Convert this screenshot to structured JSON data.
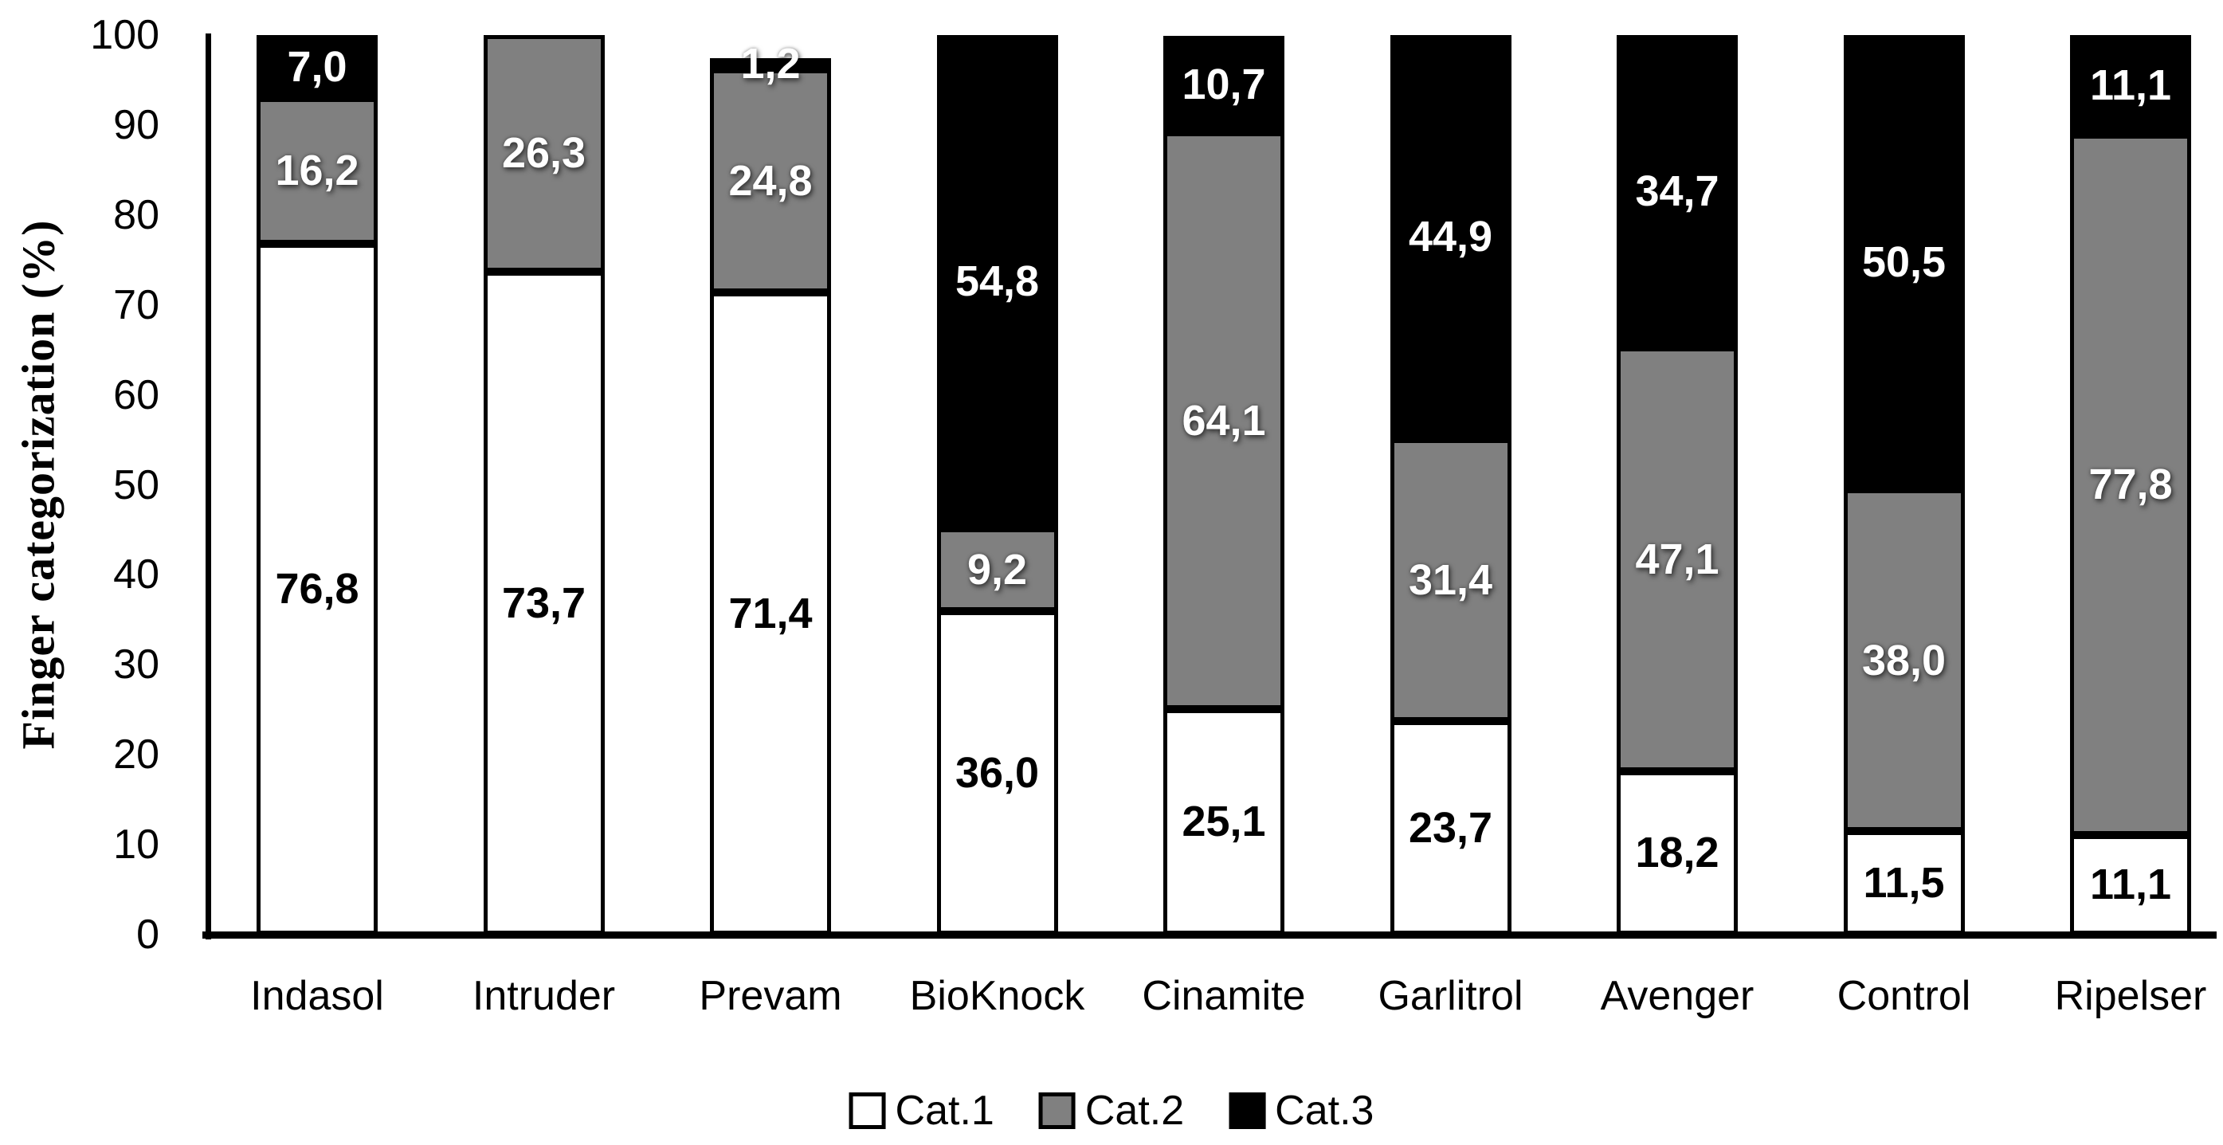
{
  "chart_data": {
    "type": "bar",
    "subtype": "stacked-percentage",
    "title": "",
    "ylabel": "Finger categorization (%)",
    "xlabel": "",
    "ylim": [
      0,
      100
    ],
    "yticks": [
      0,
      10,
      20,
      30,
      40,
      50,
      60,
      70,
      80,
      90,
      100
    ],
    "grid": false,
    "legend_position": "bottom-center",
    "decimal_separator": ",",
    "categories": [
      "Indasol",
      "Intruder",
      "Prevam",
      "BioKnock",
      "Cinamite",
      "Garlitrol",
      "Avenger",
      "Control",
      "Ripelser"
    ],
    "series": [
      {
        "name": "Cat.1",
        "color": "#ffffff",
        "text_color": "#000000",
        "values": [
          76.8,
          73.7,
          71.4,
          36.0,
          25.1,
          23.7,
          18.2,
          11.5,
          11.1
        ],
        "labels": [
          "76,8",
          "73,7",
          "71,4",
          "36,0",
          "25,1",
          "23,7",
          "18,2",
          "11,5",
          "11,1"
        ]
      },
      {
        "name": "Cat.2",
        "color": "#808080",
        "text_color": "#ffffff",
        "values": [
          16.2,
          26.3,
          24.8,
          9.2,
          64.1,
          31.4,
          47.1,
          38.0,
          77.8
        ],
        "labels": [
          "16,2",
          "26,3",
          "24,8",
          "9,2",
          "64,1",
          "31,4",
          "47,1",
          "38,0",
          "77,8"
        ]
      },
      {
        "name": "Cat.3",
        "color": "#000000",
        "text_color": "#ffffff",
        "values": [
          7.0,
          0,
          1.2,
          54.8,
          10.7,
          44.9,
          34.7,
          50.5,
          11.1
        ],
        "labels": [
          "7,0",
          "",
          "1,2",
          "54,8",
          "10,7",
          "44,9",
          "34,7",
          "50,5",
          "11,1"
        ]
      }
    ]
  }
}
